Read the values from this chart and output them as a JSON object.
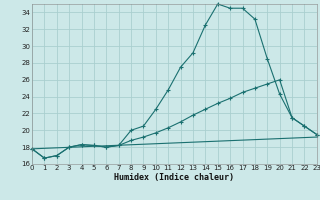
{
  "xlabel": "Humidex (Indice chaleur)",
  "background_color": "#cce8e8",
  "grid_color": "#aacfcf",
  "line_color": "#1a7070",
  "xlim": [
    0,
    23
  ],
  "ylim": [
    16,
    35
  ],
  "yticks": [
    16,
    18,
    20,
    22,
    24,
    26,
    28,
    30,
    32,
    34
  ],
  "xticks": [
    0,
    1,
    2,
    3,
    4,
    5,
    6,
    7,
    8,
    9,
    10,
    11,
    12,
    13,
    14,
    15,
    16,
    17,
    18,
    19,
    20,
    21,
    22,
    23
  ],
  "curve1_x": [
    0,
    1,
    2,
    3,
    4,
    5,
    6,
    7,
    8,
    9,
    10,
    11,
    12,
    13,
    14,
    15,
    16,
    17,
    18,
    19,
    20,
    21,
    22,
    23
  ],
  "curve1_y": [
    17.8,
    16.7,
    17.0,
    18.0,
    18.3,
    18.2,
    18.0,
    18.2,
    20.0,
    20.5,
    22.5,
    24.8,
    27.5,
    29.2,
    32.5,
    35.0,
    34.5,
    34.5,
    33.2,
    28.5,
    24.3,
    21.5,
    20.5,
    19.5
  ],
  "curve2_x": [
    0,
    1,
    2,
    3,
    4,
    5,
    6,
    7,
    8,
    9,
    10,
    11,
    12,
    13,
    14,
    15,
    16,
    17,
    18,
    19,
    20,
    21,
    22,
    23
  ],
  "curve2_y": [
    17.8,
    16.7,
    17.0,
    18.0,
    18.3,
    18.2,
    18.0,
    18.2,
    18.8,
    19.2,
    19.7,
    20.3,
    21.0,
    21.8,
    22.5,
    23.2,
    23.8,
    24.5,
    25.0,
    25.5,
    26.0,
    21.5,
    20.5,
    19.5
  ],
  "line3_x": [
    0,
    23
  ],
  "line3_y": [
    17.8,
    19.2
  ]
}
